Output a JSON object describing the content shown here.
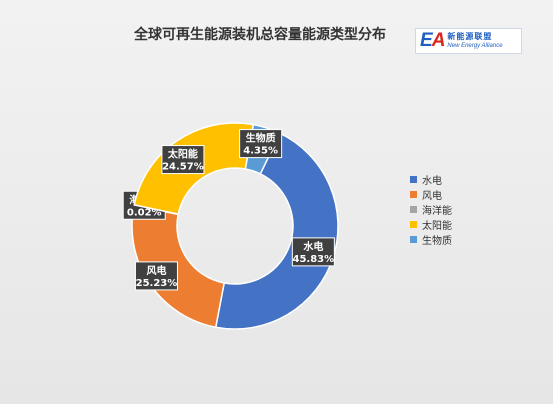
{
  "logo": {
    "cn": "新能源联盟",
    "en": "New Energy Alliance"
  },
  "chart_data": {
    "type": "pie",
    "style": "donut",
    "title": "全球可再生能源装机总容量能源类型分布",
    "legend_position": "right",
    "series": [
      {
        "name": "水电",
        "value": 45.83,
        "label": "45.83%",
        "color": "#4472c4"
      },
      {
        "name": "风电",
        "value": 25.23,
        "label": "25.23%",
        "color": "#ed7d31"
      },
      {
        "name": "海洋能",
        "value": 0.02,
        "label": "0.02%",
        "color": "#a5a5a5"
      },
      {
        "name": "太阳能",
        "value": 24.57,
        "label": "24.57%",
        "color": "#ffc000"
      },
      {
        "name": "生物质",
        "value": 4.35,
        "label": "4.35%",
        "color": "#5b9bd5"
      }
    ]
  }
}
